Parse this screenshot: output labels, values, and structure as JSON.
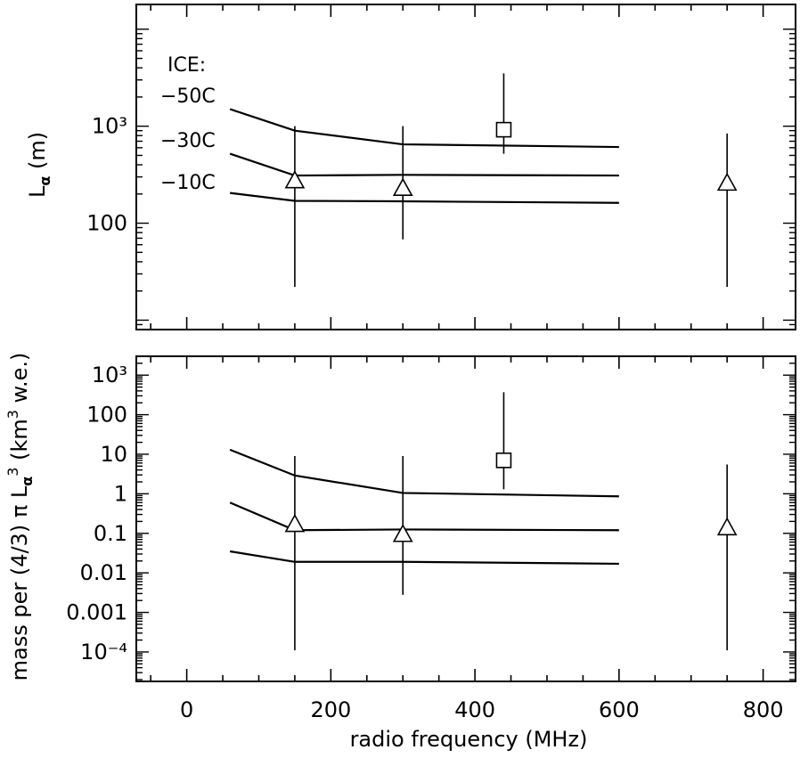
{
  "chart_data": [
    {
      "type": "line",
      "panel": "top",
      "ylabel": "L_α (m)",
      "yscale": "log",
      "xlim": [
        -70,
        845
      ],
      "ylim": [
        8,
        18000
      ],
      "ytick_labels": [
        {
          "value": 100,
          "label": "100"
        },
        {
          "value": 1000,
          "label": "10³"
        }
      ],
      "annotations": [
        "ICE:",
        "−50C",
        "−30C",
        "−10C"
      ],
      "series": [
        {
          "x": [
            60,
            150,
            300,
            600
          ],
          "y": [
            1500,
            900,
            650,
            610
          ]
        },
        {
          "x": [
            60,
            150,
            300,
            600
          ],
          "y": [
            520,
            310,
            315,
            310
          ]
        },
        {
          "x": [
            60,
            150,
            300,
            600
          ],
          "y": [
            205,
            170,
            168,
            162
          ]
        }
      ],
      "markers": [
        {
          "shape": "triangle",
          "x": 150,
          "y": 275,
          "ylow": 22,
          "yhigh": 1000
        },
        {
          "shape": "triangle",
          "x": 300,
          "y": 230,
          "ylow": 68,
          "yhigh": 1000
        },
        {
          "shape": "triangle",
          "x": 750,
          "y": 260,
          "ylow": 22,
          "yhigh": 840
        },
        {
          "shape": "square",
          "x": 440,
          "y": 920,
          "ylow": 520,
          "yhigh": 3500
        }
      ]
    },
    {
      "type": "line",
      "panel": "bottom",
      "xlabel": "radio frequency (MHz)",
      "ylabel": "mass per (4/3) π L_α³ (km³ w.e.)",
      "yscale": "log",
      "xlim": [
        -70,
        845
      ],
      "ylim": [
        1.8e-05,
        3000
      ],
      "xtick_labels": [
        "0",
        "200",
        "400",
        "600",
        "800"
      ],
      "xticks": [
        0,
        200,
        400,
        600,
        800
      ],
      "ytick_labels": [
        {
          "value": 0.0001,
          "label": "10⁻⁴"
        },
        {
          "value": 0.001,
          "label": "0.001"
        },
        {
          "value": 0.01,
          "label": "0.01"
        },
        {
          "value": 0.1,
          "label": "0.1"
        },
        {
          "value": 1,
          "label": "1"
        },
        {
          "value": 10,
          "label": "10"
        },
        {
          "value": 100,
          "label": "100"
        },
        {
          "value": 1000,
          "label": "10³"
        }
      ],
      "series": [
        {
          "x": [
            60,
            150,
            300,
            600
          ],
          "y": [
            13,
            2.9,
            1.05,
            0.86
          ]
        },
        {
          "x": [
            60,
            150,
            300,
            600
          ],
          "y": [
            0.6,
            0.12,
            0.125,
            0.12
          ]
        },
        {
          "x": [
            60,
            150,
            300,
            600
          ],
          "y": [
            0.035,
            0.019,
            0.019,
            0.017
          ]
        }
      ],
      "markers": [
        {
          "shape": "triangle",
          "x": 150,
          "y": 0.17,
          "ylow": 0.00011,
          "yhigh": 9
        },
        {
          "shape": "triangle",
          "x": 300,
          "y": 0.095,
          "ylow": 0.0028,
          "yhigh": 9
        },
        {
          "shape": "triangle",
          "x": 750,
          "y": 0.14,
          "ylow": 0.00011,
          "yhigh": 5.5
        },
        {
          "shape": "square",
          "x": 440,
          "y": 7,
          "ylow": 1.3,
          "yhigh": 370
        }
      ]
    }
  ]
}
